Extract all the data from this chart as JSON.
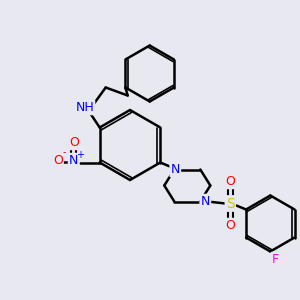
{
  "background_color": "#e8e8f0",
  "bond_color": "#000000",
  "atom_colors": {
    "N": "#0000ff",
    "O": "#ff0000",
    "S": "#cccc00",
    "F": "#ff00ff",
    "H": "#008080",
    "C": "#000000"
  },
  "title": "",
  "figsize": [
    3.0,
    3.0
  ],
  "dpi": 100
}
